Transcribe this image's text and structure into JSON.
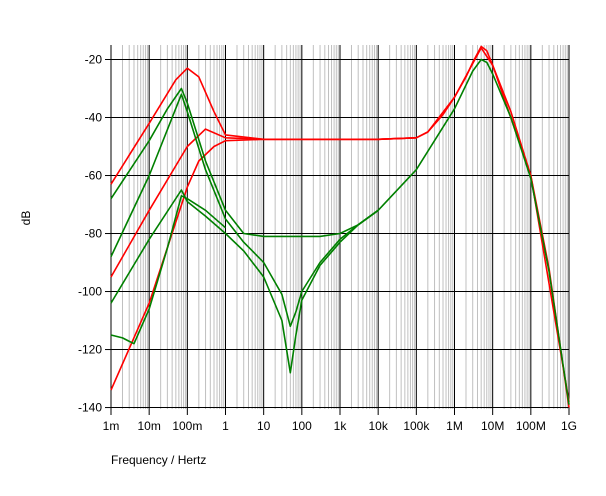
{
  "chart_data": {
    "type": "line",
    "title": "",
    "xlabel": "Frequency / Hertz",
    "ylabel": "dB",
    "x_scale": "log",
    "xlim": [
      0.001,
      1000000000
    ],
    "ylim": [
      -140,
      -15
    ],
    "grid": true,
    "legend": "none",
    "x_tick_labels": [
      "1m",
      "10m",
      "100m",
      "1",
      "10",
      "100",
      "1k",
      "10k",
      "100k",
      "1M",
      "10M",
      "100M",
      "1G"
    ],
    "x_tick_values": [
      0.001,
      0.01,
      0.1,
      1,
      10,
      100,
      1000,
      10000,
      100000,
      1000000,
      10000000,
      100000000,
      1000000000
    ],
    "y_tick_labels": [
      "-20",
      "-40",
      "-60",
      "-80",
      "-100",
      "-120",
      "-140"
    ],
    "y_tick_values": [
      -20,
      -40,
      -60,
      -80,
      -100,
      -120,
      -140
    ],
    "colors": {
      "red_family": "#ff0000",
      "green_family": "#008000",
      "grid_major": "#000000",
      "grid_minor": "#c0c0c0"
    },
    "series": [
      {
        "color": "#ff0000",
        "x": [
          0.001,
          0.01,
          0.05,
          0.1,
          0.2,
          0.5,
          1,
          10,
          100,
          1000,
          10000,
          100000,
          200000,
          500000,
          1000000,
          2000000,
          3000000,
          5000000,
          7000000,
          10000000,
          30000000,
          100000000,
          300000000,
          1000000000
        ],
        "values": [
          -63,
          -42,
          -27,
          -23,
          -26,
          -38,
          -46,
          -47.5,
          -47.5,
          -47.5,
          -47.5,
          -47,
          -45,
          -39,
          -33,
          -26,
          -21,
          -15.5,
          -17,
          -22,
          -38,
          -60,
          -92,
          -140
        ]
      },
      {
        "color": "#ff0000",
        "x": [
          0.001,
          0.01,
          0.1,
          0.3,
          1,
          10,
          100,
          1000,
          10000,
          100000,
          200000,
          1000000,
          5000000,
          10000000,
          100000000,
          1000000000
        ],
        "values": [
          -95,
          -72,
          -50,
          -44,
          -47,
          -47.5,
          -47.5,
          -47.5,
          -47.5,
          -47,
          -45,
          -33,
          -16,
          -22,
          -60,
          -138
        ]
      },
      {
        "color": "#ff0000",
        "x": [
          0.001,
          0.01,
          0.1,
          0.2,
          0.5,
          1,
          10,
          100,
          1000,
          10000,
          100000
        ],
        "values": [
          -134,
          -104,
          -64,
          -55,
          -50,
          -48,
          -47.5,
          -47.5,
          -47.5,
          -47.5,
          -47
        ]
      },
      {
        "color": "#008000",
        "x": [
          0.001,
          0.01,
          0.03,
          0.07,
          0.1,
          0.3,
          1,
          3,
          10,
          30,
          100,
          300,
          1000,
          3000,
          10000,
          100000,
          1000000,
          3000000,
          5000000,
          7000000,
          10000000,
          30000000,
          100000000,
          300000000,
          1000000000
        ],
        "values": [
          -68,
          -48,
          -37,
          -30,
          -35,
          -55,
          -72,
          -80,
          -81,
          -81,
          -81,
          -81,
          -80,
          -77,
          -72,
          -58,
          -37,
          -24,
          -20,
          -21,
          -25,
          -40,
          -61,
          -93,
          -139
        ]
      },
      {
        "color": "#008000",
        "x": [
          0.001,
          0.01,
          0.07,
          0.1,
          0.3,
          1,
          3,
          10,
          30,
          50,
          70,
          100,
          300,
          1000,
          3000,
          10000
        ],
        "values": [
          -88,
          -60,
          -32,
          -38,
          -58,
          -75,
          -83,
          -90,
          -101,
          -112,
          -107,
          -100,
          -90,
          -82,
          -77,
          -72
        ]
      },
      {
        "color": "#008000",
        "x": [
          0.001,
          0.01,
          0.07,
          0.1,
          0.3,
          1,
          3,
          10,
          30,
          50,
          70,
          100,
          300,
          1000,
          3000,
          10000
        ],
        "values": [
          -104,
          -82,
          -65,
          -69,
          -74,
          -80,
          -86,
          -95,
          -110,
          -128,
          -115,
          -103,
          -91,
          -83,
          -77,
          -72
        ]
      },
      {
        "color": "#008000",
        "x": [
          0.001,
          0.002,
          0.004,
          0.01,
          0.03,
          0.07,
          0.1,
          0.3,
          1
        ],
        "values": [
          -115,
          -116,
          -118,
          -106,
          -85,
          -67,
          -68,
          -72,
          -78
        ]
      }
    ]
  }
}
